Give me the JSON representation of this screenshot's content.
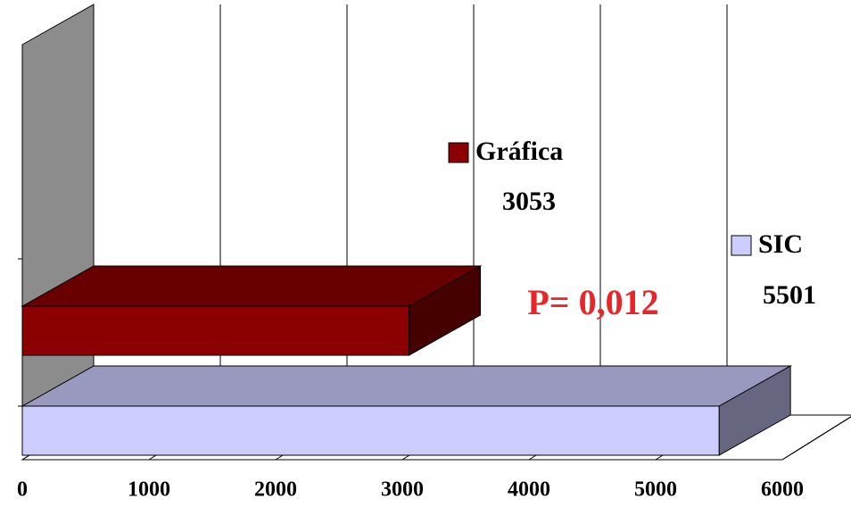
{
  "chart_data": {
    "type": "bar",
    "orientation": "horizontal",
    "series": [
      {
        "name": "Gráfica",
        "color": "#8b0000",
        "values": [
          3053
        ]
      },
      {
        "name": "SIC",
        "color": "#ccccff",
        "values": [
          5501
        ]
      }
    ],
    "xlim": [
      0,
      6000
    ],
    "xticks": [
      0,
      1000,
      2000,
      3000,
      4000,
      5000,
      6000
    ],
    "grid": true,
    "annotation": {
      "text": "P= 0,012",
      "color": "#e8262a"
    }
  }
}
